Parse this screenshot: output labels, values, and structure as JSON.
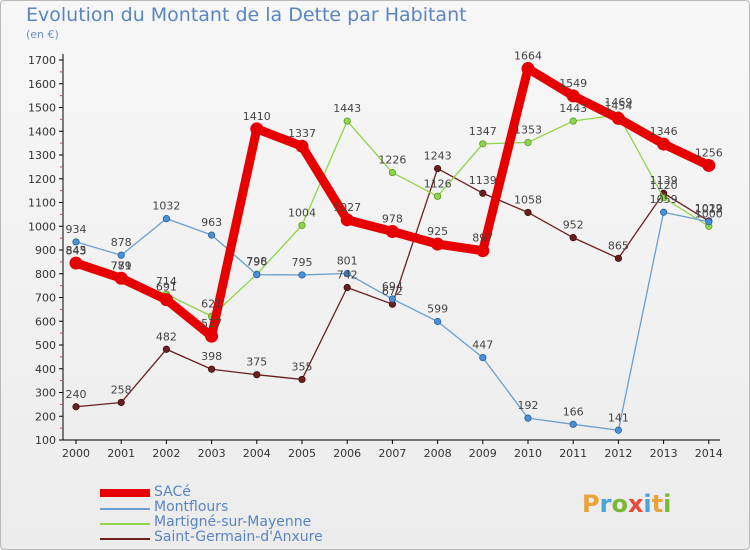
{
  "title": "Evolution du Montant de la Dette par Habitant",
  "unit_label": "(en €)",
  "logo": {
    "letters": [
      "P",
      "r",
      "o",
      "x",
      "i",
      "t",
      "i"
    ],
    "colors": [
      "#e8a33a",
      "#4aa3d8",
      "#7bb83a",
      "#e34b3a",
      "#4aa3d8",
      "#e8a33a",
      "#7bb83a"
    ]
  },
  "chart_data": {
    "type": "line",
    "title": "Evolution du Montant de la Dette par Habitant",
    "ylabel": "(en €)",
    "xlabel": "",
    "categories": [
      "2000",
      "2001",
      "2002",
      "2003",
      "2004",
      "2005",
      "2006",
      "2007",
      "2008",
      "2009",
      "2010",
      "2011",
      "2012",
      "2013",
      "2014"
    ],
    "ylim": [
      100,
      1700
    ],
    "yticks": [
      100,
      200,
      300,
      400,
      500,
      600,
      700,
      800,
      900,
      1000,
      1100,
      1200,
      1300,
      1400,
      1500,
      1600,
      1700
    ],
    "grid": false,
    "legend_position": "bottom-left",
    "series": [
      {
        "name": "SACé",
        "color": "#e60000",
        "values": [
          845,
          781,
          691,
          537,
          1410,
          1337,
          1027,
          978,
          925,
          897,
          1664,
          1549,
          1454,
          1346,
          1256
        ]
      },
      {
        "name": "Montflours",
        "color": "#6a9fcf",
        "values": [
          934,
          878,
          1032,
          963,
          796,
          795,
          801,
          694,
          599,
          447,
          192,
          166,
          141,
          1059,
          1019
        ]
      },
      {
        "name": "Martigné-sur-Mayenne",
        "color": "#8fd44a",
        "values": [
          843,
          779,
          714,
          621,
          798,
          1004,
          1443,
          1226,
          1126,
          1347,
          1353,
          1443,
          1469,
          1120,
          1000
        ]
      },
      {
        "name": "Saint-Germain-d'Anxure",
        "color": "#6b1f1f",
        "values": [
          240,
          258,
          482,
          398,
          375,
          355,
          742,
          672,
          1243,
          1139,
          1058,
          952,
          865,
          1139,
          1022
        ]
      }
    ]
  }
}
